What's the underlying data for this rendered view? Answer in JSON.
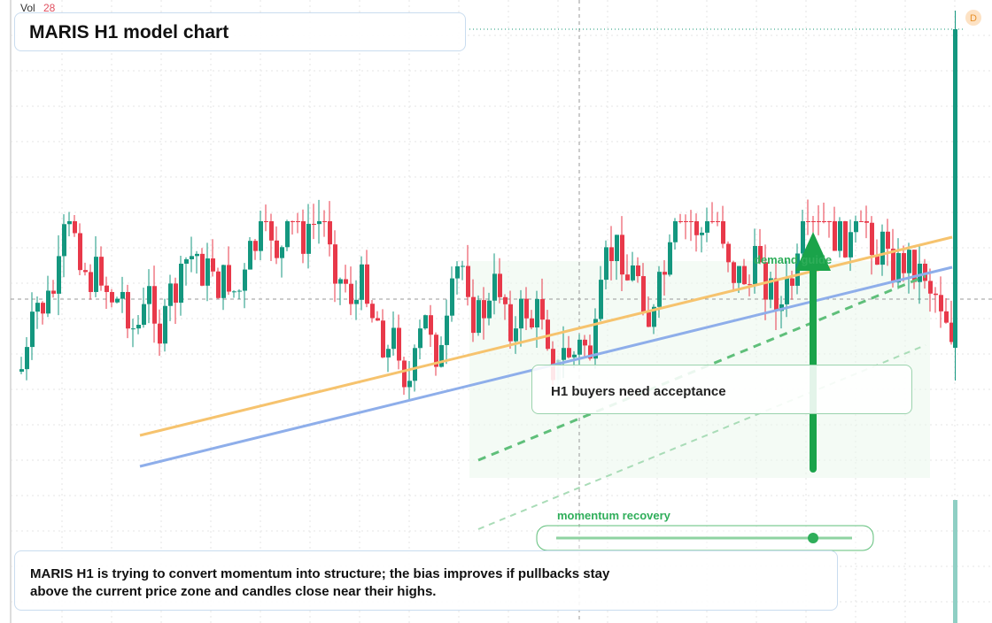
{
  "header": {
    "vol_label": "Vol",
    "vol_value": 28,
    "title": "MARIS H1 model chart",
    "badge": "D"
  },
  "annotations": {
    "callout": "H1 buyers need acceptance",
    "demand": "demand guide",
    "momentum": "momentum recovery"
  },
  "summary": "MARIS H1 is trying to convert momentum into structure; the bias improves if pullbacks stay above the current price zone and candles close near their highs."
}
